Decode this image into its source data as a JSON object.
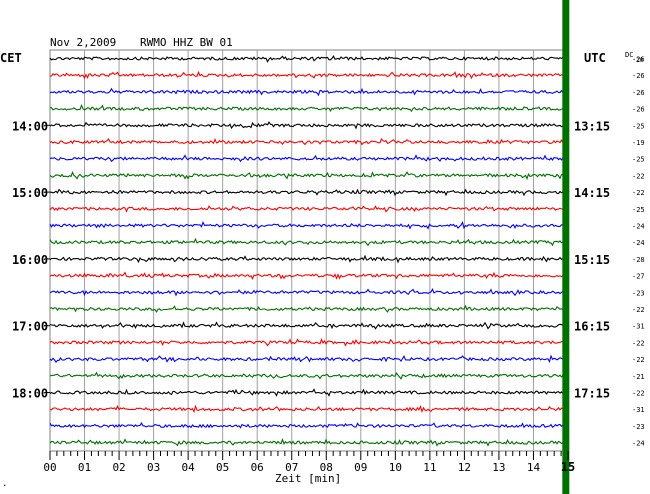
{
  "header": {
    "date": "Nov 2,2009",
    "station": "RWMO HHZ BW 01",
    "left_zone": "CET",
    "right_zone": "UTC",
    "dc_label": "DC",
    "dc_sub": "20"
  },
  "footer": {
    "xlabel": "Zeit [min]",
    "corner_mark": "."
  },
  "chart_data": {
    "type": "line",
    "title": "Nov 2,2009   RWMO HHZ BW 01",
    "xlabel": "Zeit [min]",
    "x_range": [
      0,
      15
    ],
    "x_ticks": [
      "00",
      "01",
      "02",
      "03",
      "04",
      "05",
      "06",
      "07",
      "08",
      "09",
      "10",
      "11",
      "12",
      "13",
      "14",
      "15"
    ],
    "grid": true,
    "trace_minutes_per_line": 15,
    "trace_colors": [
      "#000000",
      "#ff0000",
      "#0000ff",
      "#007000"
    ],
    "left_time_labels": [
      {
        "row": 4,
        "label": "14:00"
      },
      {
        "row": 8,
        "label": "15:00"
      },
      {
        "row": 12,
        "label": "16:00"
      },
      {
        "row": 16,
        "label": "17:00"
      },
      {
        "row": 20,
        "label": "18:00"
      }
    ],
    "right_time_labels": [
      {
        "row": 4,
        "label": "13:15"
      },
      {
        "row": 8,
        "label": "14:15"
      },
      {
        "row": 12,
        "label": "15:15"
      },
      {
        "row": 16,
        "label": "16:15"
      },
      {
        "row": 20,
        "label": "17:15"
      }
    ],
    "dc_offsets": [
      "-26",
      "-26",
      "-26",
      "-26",
      "-25",
      "-19",
      "-25",
      "-22",
      "-22",
      "-25",
      "-24",
      "-24",
      "-28",
      "-27",
      "-23",
      "-22",
      "-31",
      "-22",
      "-22",
      "-21",
      "-22",
      "-31",
      "-23",
      "-24"
    ],
    "current_time_marker_minute": 14.85
  }
}
